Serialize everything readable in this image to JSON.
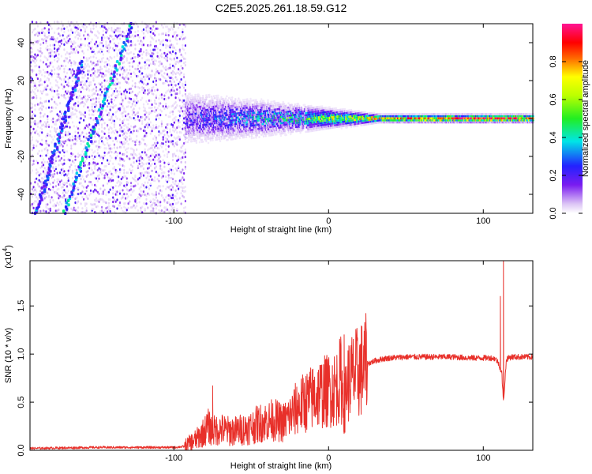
{
  "figure": {
    "title": "C2E5.2025.261.18.59.G12"
  },
  "chart_data": [
    {
      "type": "heatmap",
      "name": "spectrogram",
      "xlabel": "Height of straight line (km)",
      "ylabel": "Frequency (Hz)",
      "xlim": [
        -193,
        132
      ],
      "ylim": [
        -50,
        50
      ],
      "xticks": [
        -100,
        0,
        100
      ],
      "yticks": [
        -40,
        -20,
        0,
        20,
        40
      ],
      "colorbar": {
        "label": "Normalized spectral amplitude",
        "range": [
          0,
          1
        ],
        "ticks": [
          0.0,
          0.2,
          0.4,
          0.6,
          0.8
        ],
        "tick_labels": [
          "0.0",
          "0.2",
          "0.4",
          "0.6",
          "0.8"
        ],
        "colormap": [
          "#ffffff",
          "#dcc4f5",
          "#7a1cf0",
          "#2222ff",
          "#00e6e6",
          "#22ee22",
          "#ffff00",
          "#ff6600",
          "#ff0000",
          "#ff1493"
        ]
      },
      "features": [
        {
          "kind": "noise-region",
          "x_range": [
            -193,
            -93
          ],
          "y_range": [
            -50,
            50
          ],
          "amplitude": [
            0.05,
            0.3
          ]
        },
        {
          "kind": "streak",
          "x": [
            -172,
            -128
          ],
          "y": [
            -50,
            50
          ],
          "amplitude": 0.3
        },
        {
          "kind": "streak",
          "x": [
            -190,
            -160
          ],
          "y": [
            -50,
            30
          ],
          "amplitude": 0.25
        },
        {
          "kind": "band",
          "x_range": [
            -93,
            132
          ],
          "center_hz": 0,
          "half_width_hz": [
            12,
            2
          ],
          "amplitude": [
            0.3,
            0.95
          ]
        }
      ]
    },
    {
      "type": "line",
      "name": "snr",
      "xlabel": "Height of straight line (km)",
      "ylabel": "SNR (10 * v/v)",
      "y_multiplier_label": "(x10",
      "y_multiplier_exp": "4",
      "y_multiplier_close": ")",
      "xlim": [
        -193,
        132
      ],
      "ylim": [
        0,
        1.97
      ],
      "xticks": [
        -100,
        0,
        100
      ],
      "yticks": [
        0.0,
        0.5,
        1.0,
        1.5
      ],
      "ytick_labels": [
        "0.0",
        "0.5",
        "1.0",
        "1.5"
      ],
      "series_color": "#e8302a",
      "series": [
        {
          "x": [
            -193,
            -150,
            -100,
            -93,
            -85,
            -80,
            -78,
            -75,
            -70,
            -65,
            -60,
            -55,
            -50,
            -45,
            -40,
            -35,
            -30,
            -25,
            -20,
            -15,
            -10,
            -5,
            0,
            5,
            8,
            10,
            12,
            15,
            20,
            25,
            30,
            35,
            40,
            50,
            60,
            70,
            80,
            90,
            100,
            105,
            108,
            110,
            112,
            113,
            115,
            118,
            120,
            125,
            132
          ],
          "y": [
            0.02,
            0.03,
            0.03,
            0.04,
            0.12,
            0.2,
            0.25,
            0.2,
            0.22,
            0.2,
            0.2,
            0.22,
            0.24,
            0.28,
            0.3,
            0.32,
            0.28,
            0.35,
            0.45,
            0.5,
            0.55,
            0.6,
            0.62,
            0.65,
            0.75,
            0.45,
            0.7,
            0.76,
            0.82,
            0.9,
            0.93,
            0.95,
            0.96,
            0.97,
            0.97,
            0.97,
            0.97,
            0.96,
            0.96,
            0.96,
            0.95,
            0.9,
            0.8,
            0.5,
            0.95,
            0.97,
            0.97,
            0.97,
            0.97
          ]
        }
      ],
      "annotations": [
        {
          "x": 10,
          "y": 1.2,
          "text": ""
        },
        {
          "x": -75,
          "y": 0.67,
          "text": ""
        },
        {
          "x": 111,
          "y": 1.6,
          "text": ""
        },
        {
          "x": 113,
          "y": 1.97,
          "text": ""
        }
      ]
    }
  ]
}
